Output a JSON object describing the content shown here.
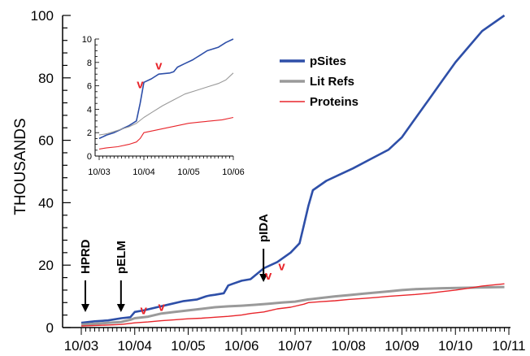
{
  "chart_data": [
    {
      "type": "line",
      "title": "",
      "xlabel": "",
      "ylabel": "THOUSANDS",
      "x_ticks": [
        "10/03",
        "10/04",
        "10/05",
        "10/06",
        "10/07",
        "10/08",
        "10/09",
        "10/10",
        "10/11"
      ],
      "y_ticks": [
        "0",
        "20",
        "40",
        "60",
        "80",
        "100"
      ],
      "ylim": [
        0,
        100
      ],
      "xlim": [
        "10/03",
        "10/11"
      ],
      "legend": {
        "position": "top-right"
      },
      "series": [
        {
          "name": "pSites",
          "color": "#2e4fa8",
          "x": [
            "10/03",
            "01/04",
            "04/04",
            "07/04",
            "09/04",
            "10/04",
            "12/04",
            "03/05",
            "06/05",
            "09/05",
            "12/05",
            "02/06",
            "03/06",
            "04/06",
            "06/06",
            "07/06",
            "08/06",
            "10/06",
            "12/06",
            "03/07",
            "06/07",
            "09/07",
            "11/07",
            "12/07",
            "01/08",
            "02/08",
            "05/08",
            "08/08",
            "11/08",
            "03/09",
            "07/09",
            "10/09",
            "01/10",
            "04/10",
            "07/10",
            "10/10",
            "01/11",
            "04/11",
            "09/11"
          ],
          "y": [
            1.5,
            2,
            2.3,
            3,
            3.3,
            5,
            5.5,
            6.5,
            7.5,
            8.5,
            9,
            10,
            10.3,
            10.5,
            11,
            13.5,
            14,
            15,
            15.5,
            19,
            21,
            24,
            27,
            33,
            39,
            44,
            47,
            49,
            51,
            54,
            57,
            61,
            67,
            73,
            79,
            85,
            90,
            95,
            100
          ]
        },
        {
          "name": "Lit Refs",
          "color": "#9a9a9a",
          "x": [
            "10/03",
            "01/04",
            "04/04",
            "07/04",
            "09/04",
            "10/04",
            "01/05",
            "04/05",
            "07/05",
            "10/05",
            "01/06",
            "04/06",
            "07/06",
            "10/06",
            "01/07",
            "04/07",
            "07/07",
            "10/07",
            "01/08",
            "04/08",
            "07/08",
            "10/08",
            "01/09",
            "04/09",
            "07/09",
            "10/09",
            "01/10",
            "07/10",
            "09/11"
          ],
          "y": [
            1,
            1.2,
            1.5,
            1.8,
            2.5,
            3,
            3.5,
            4.5,
            5,
            5.5,
            6,
            6.5,
            6.8,
            7,
            7.3,
            7.6,
            8,
            8.3,
            9,
            9.5,
            10,
            10.4,
            10.8,
            11.2,
            11.6,
            12,
            12.3,
            12.6,
            13
          ]
        },
        {
          "name": "Proteins",
          "color": "#e8252b",
          "x": [
            "10/03",
            "04/04",
            "07/04",
            "10/04",
            "01/05",
            "04/05",
            "07/05",
            "10/05",
            "01/06",
            "04/06",
            "07/06",
            "10/06",
            "12/06",
            "03/07",
            "06/07",
            "09/07",
            "12/07",
            "01/08",
            "04/08",
            "07/08",
            "10/08",
            "01/09",
            "04/09",
            "07/09",
            "10/09",
            "01/10",
            "04/10",
            "07/10",
            "10/10",
            "01/11",
            "04/11",
            "09/11"
          ],
          "y": [
            0.5,
            0.8,
            1,
            1.5,
            1.8,
            2.2,
            2.5,
            2.8,
            3,
            3.3,
            3.6,
            4,
            4.5,
            5,
            6,
            6.5,
            7.5,
            8,
            8.3,
            8.6,
            9,
            9.3,
            9.6,
            10,
            10.3,
            10.6,
            11,
            11.5,
            12,
            12.6,
            13.3,
            14
          ]
        }
      ],
      "annotations": [
        {
          "text": "HPRD",
          "arrow": "down",
          "x": "10/03"
        },
        {
          "text": "pELM",
          "arrow": "down",
          "x": "06/04"
        },
        {
          "text": "pIDA",
          "arrow": "down",
          "x": "02/07"
        },
        {
          "text": "v",
          "color": "#e8252b",
          "x": "12/04",
          "y": 3
        },
        {
          "text": "v",
          "color": "#e8252b",
          "x": "04/05",
          "y": 4
        },
        {
          "text": "v",
          "color": "#e8252b",
          "x": "04/07",
          "y": 14
        },
        {
          "text": "v",
          "color": "#e8252b",
          "x": "07/07",
          "y": 17
        }
      ]
    },
    {
      "type": "line",
      "title": "",
      "xlabel": "",
      "ylabel": "",
      "x_ticks": [
        "10/03",
        "10/04",
        "10/05",
        "10/06"
      ],
      "y_ticks": [
        "0",
        "2",
        "4",
        "6",
        "8",
        "10"
      ],
      "ylim": [
        0,
        10
      ],
      "series": [
        {
          "name": "pSites",
          "color": "#2e4fa8",
          "x": [
            "10/03",
            "12/03",
            "02/04",
            "04/04",
            "06/04",
            "07/04",
            "08/04",
            "09/04",
            "10/04",
            "12/04",
            "02/05",
            "05/05",
            "06/05",
            "07/05",
            "09/05",
            "11/05",
            "12/05",
            "01/06",
            "03/06",
            "06/06",
            "08/06",
            "10/06"
          ],
          "y": [
            1.5,
            1.8,
            2,
            2.3,
            2.6,
            2.8,
            3,
            4.5,
            6.3,
            6.6,
            7,
            7.1,
            7.2,
            7.6,
            7.9,
            8.2,
            8.4,
            8.6,
            9,
            9.3,
            9.7,
            10
          ]
        },
        {
          "name": "Lit Refs",
          "color": "#9a9a9a",
          "x": [
            "10/03",
            "12/03",
            "02/04",
            "04/04",
            "06/04",
            "08/04",
            "10/04",
            "12/04",
            "03/05",
            "06/05",
            "09/05",
            "12/05",
            "03/06",
            "06/06",
            "08/06",
            "10/06"
          ],
          "y": [
            1.8,
            1.9,
            2.1,
            2.3,
            2.5,
            2.8,
            3.3,
            3.7,
            4.3,
            4.8,
            5.3,
            5.6,
            5.9,
            6.2,
            6.5,
            7.1
          ]
        },
        {
          "name": "Proteins",
          "color": "#e8252b",
          "x": [
            "10/03",
            "12/03",
            "03/04",
            "06/04",
            "08/04",
            "09/04",
            "10/04",
            "01/05",
            "04/05",
            "07/05",
            "10/05",
            "01/06",
            "04/06",
            "07/06",
            "10/06"
          ],
          "y": [
            0.6,
            0.7,
            0.8,
            1,
            1.2,
            1.5,
            2,
            2.2,
            2.4,
            2.6,
            2.8,
            2.9,
            3,
            3.1,
            3.3
          ]
        }
      ],
      "annotations": [
        {
          "text": "v",
          "color": "#e8252b",
          "x": "09/04",
          "y": 5.6
        },
        {
          "text": "v",
          "color": "#e8252b",
          "x": "02/05",
          "y": 7.2
        }
      ]
    }
  ]
}
